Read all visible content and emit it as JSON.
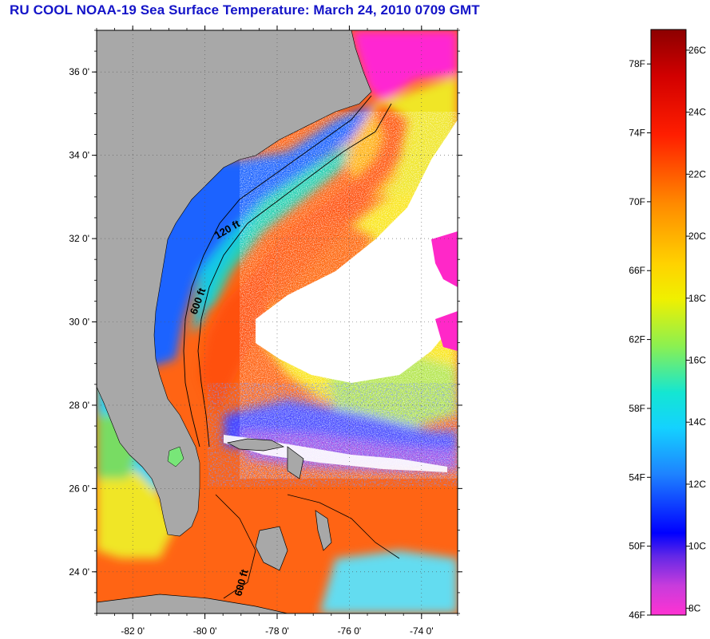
{
  "title": "RU COOL  NOAA-19  Sea Surface Temperature:  March 24, 2010 0709 GMT",
  "map": {
    "lon_range": [
      -83,
      -73
    ],
    "lat_range": [
      23,
      37
    ],
    "lat_ticks": [
      {
        "value": 36,
        "label": "36 0'"
      },
      {
        "value": 34,
        "label": "34 0'"
      },
      {
        "value": 32,
        "label": "32 0'"
      },
      {
        "value": 30,
        "label": "30 0'"
      },
      {
        "value": 28,
        "label": "28 0'"
      },
      {
        "value": 26,
        "label": "26 0'"
      },
      {
        "value": 24,
        "label": "24 0'"
      }
    ],
    "lon_ticks": [
      {
        "value": -82,
        "label": "-82 0'"
      },
      {
        "value": -80,
        "label": "-80 0'"
      },
      {
        "value": -78,
        "label": "-78 0'"
      },
      {
        "value": -76,
        "label": "-76 0'"
      },
      {
        "value": -74,
        "label": "-74 0'"
      }
    ],
    "contour_labels": [
      {
        "text": "120 ft"
      },
      {
        "text": "600 ft"
      },
      {
        "text": "600 ft"
      }
    ],
    "colors": {
      "land": "#a9a9a9",
      "cloud": "#ffffff",
      "warm": "#ff5a14",
      "cool": "#1e78ff",
      "cold": "#ff1ed2"
    }
  },
  "legend": {
    "fahrenheit": [
      "78F",
      "74F",
      "70F",
      "66F",
      "62F",
      "58F",
      "54F",
      "50F",
      "46F"
    ],
    "celsius": [
      "26C",
      "24C",
      "22C",
      "20C",
      "18C",
      "16C",
      "14C",
      "12C",
      "10C",
      "8C"
    ],
    "f_range": [
      46,
      80
    ]
  }
}
